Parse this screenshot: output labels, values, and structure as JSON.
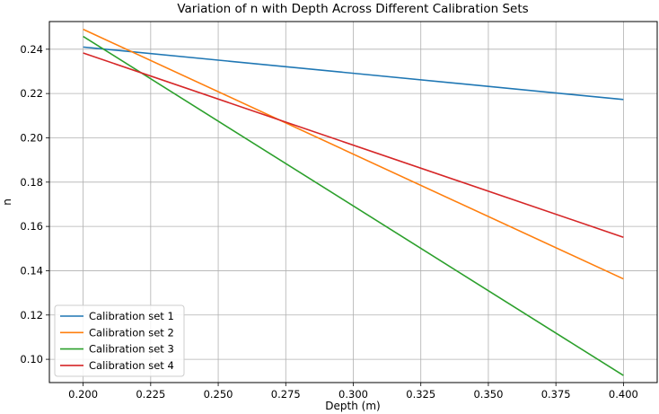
{
  "chart_data": {
    "type": "line",
    "title": "Variation of n with Depth Across Different Calibration Sets",
    "xlabel": "Depth (m)",
    "ylabel": "n",
    "xlim": [
      0.1875,
      0.4125
    ],
    "ylim": [
      0.0895,
      0.2525
    ],
    "xticks": [
      "0.200",
      "0.225",
      "0.250",
      "0.275",
      "0.300",
      "0.325",
      "0.350",
      "0.375",
      "0.400"
    ],
    "yticks": [
      "0.10",
      "0.12",
      "0.14",
      "0.16",
      "0.18",
      "0.20",
      "0.22",
      "0.24"
    ],
    "grid": true,
    "legend_position": "lower-left",
    "series": [
      {
        "name": "Calibration set 1",
        "color": "#1f77b4",
        "x": [
          0.2,
          0.4
        ],
        "y": [
          0.241,
          0.2173
        ]
      },
      {
        "name": "Calibration set 2",
        "color": "#ff7f0e",
        "x": [
          0.2,
          0.4
        ],
        "y": [
          0.249,
          0.1363
        ]
      },
      {
        "name": "Calibration set 3",
        "color": "#2ca02c",
        "x": [
          0.2,
          0.4
        ],
        "y": [
          0.2458,
          0.0927
        ]
      },
      {
        "name": "Calibration set 4",
        "color": "#d62728",
        "x": [
          0.2,
          0.4
        ],
        "y": [
          0.2383,
          0.1551
        ]
      }
    ]
  }
}
